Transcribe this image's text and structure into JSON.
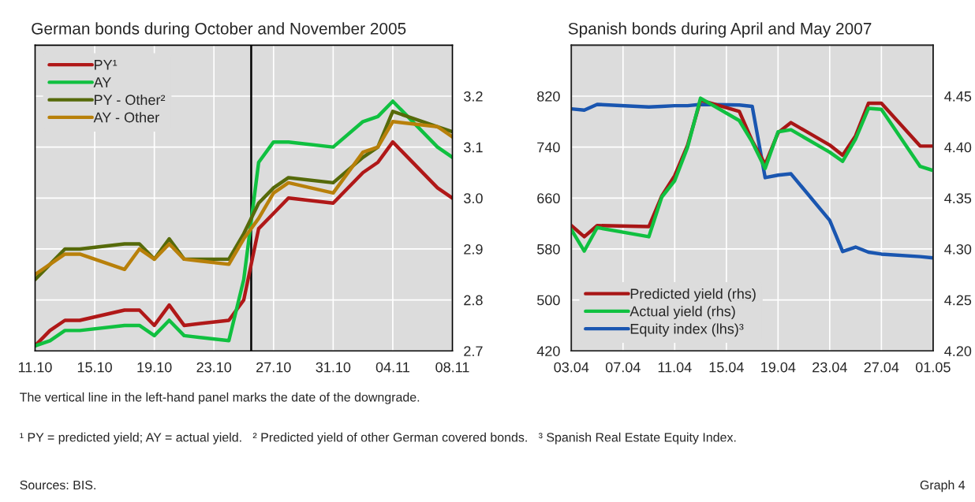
{
  "chart_data": [
    {
      "type": "line",
      "title": "German bonds during October and November 2005",
      "x": [
        "2005-10-11",
        "2005-10-12",
        "2005-10-13",
        "2005-10-14",
        "2005-10-17",
        "2005-10-18",
        "2005-10-19",
        "2005-10-20",
        "2005-10-21",
        "2005-10-24",
        "2005-10-25",
        "2005-10-26",
        "2005-10-27",
        "2005-10-28",
        "2005-10-31",
        "2005-11-02",
        "2005-11-03",
        "2005-11-04",
        "2005-11-07",
        "2005-11-08"
      ],
      "series": [
        {
          "name": "PY¹",
          "color": "#b01818",
          "values": [
            2.71,
            2.74,
            2.76,
            2.76,
            2.78,
            2.78,
            2.75,
            2.79,
            2.75,
            2.76,
            2.8,
            2.94,
            2.97,
            3.0,
            2.99,
            3.05,
            3.07,
            3.11,
            3.02,
            3.0
          ]
        },
        {
          "name": "AY",
          "color": "#10c040",
          "values": [
            2.71,
            2.72,
            2.74,
            2.74,
            2.75,
            2.75,
            2.73,
            2.76,
            2.73,
            2.72,
            2.84,
            3.07,
            3.11,
            3.11,
            3.1,
            3.15,
            3.16,
            3.19,
            3.1,
            3.08
          ]
        },
        {
          "name": "PY - Other²",
          "color": "#566a0a",
          "values": [
            2.84,
            2.87,
            2.9,
            2.9,
            2.91,
            2.91,
            2.88,
            2.92,
            2.88,
            2.88,
            2.93,
            2.99,
            3.02,
            3.04,
            3.03,
            3.08,
            3.1,
            3.17,
            3.14,
            3.13
          ]
        },
        {
          "name": "AY - Other",
          "color": "#b8800a",
          "values": [
            2.85,
            2.87,
            2.89,
            2.89,
            2.86,
            2.9,
            2.88,
            2.91,
            2.88,
            2.87,
            2.92,
            2.96,
            3.01,
            3.03,
            3.01,
            3.09,
            3.1,
            3.15,
            3.14,
            3.12
          ]
        }
      ],
      "xlim": [
        "2005-10-11",
        "2005-11-08"
      ],
      "xticks": [
        {
          "value": "2005-10-11",
          "label": "11.10"
        },
        {
          "value": "2005-10-15",
          "label": "15.10"
        },
        {
          "value": "2005-10-19",
          "label": "19.10"
        },
        {
          "value": "2005-10-23",
          "label": "23.10"
        },
        {
          "value": "2005-10-27",
          "label": "27.10"
        },
        {
          "value": "2005-10-31",
          "label": "31.10"
        },
        {
          "value": "2005-11-04",
          "label": "04.11"
        },
        {
          "value": "2005-11-08",
          "label": "08.11"
        }
      ],
      "ylim": [
        2.7,
        3.3
      ],
      "yticks": [
        2.7,
        2.8,
        2.9,
        {
          "value": 3.0,
          "label": "3.0"
        },
        3.1,
        3.2
      ],
      "grid": true,
      "legend": "top left",
      "ref_lines": [
        {
          "axis": "x",
          "value": "2005-10-25T12:00",
          "color": "#000000"
        }
      ],
      "annotations": [
        "The vertical line in the left-hand panel marks the date of the downgrade.",
        "¹ PY = predicted yield; AY = actual yield.   ² Predicted yield of other German covered bonds.   ³ Spanish Real Estate Equity Index.",
        "Sources: BIS.",
        "Graph 4"
      ]
    },
    {
      "type": "line",
      "title": "Spanish bonds during April and May 2007",
      "x": [
        "2007-04-03",
        "2007-04-04",
        "2007-04-05",
        "2007-04-09",
        "2007-04-10",
        "2007-04-11",
        "2007-04-12",
        "2007-04-13",
        "2007-04-16",
        "2007-04-17",
        "2007-04-18",
        "2007-04-19",
        "2007-04-20",
        "2007-04-23",
        "2007-04-24",
        "2007-04-25",
        "2007-04-26",
        "2007-04-27",
        "2007-04-30",
        "2007-05-01"
      ],
      "series": [
        {
          "name": "Predicted yield (rhs)",
          "color": "#a81616",
          "axis": "y2",
          "values": [
            4.323,
            4.312,
            4.323,
            4.322,
            4.352,
            4.372,
            4.402,
            4.446,
            4.435,
            4.406,
            4.383,
            4.414,
            4.424,
            4.402,
            4.392,
            4.411,
            4.443,
            4.443,
            4.401,
            4.401
          ]
        },
        {
          "name": "Actual yield (rhs)",
          "color": "#10c040",
          "axis": "y2",
          "values": [
            4.319,
            4.298,
            4.321,
            4.312,
            4.351,
            4.367,
            4.4,
            4.448,
            4.426,
            4.405,
            4.379,
            4.415,
            4.417,
            4.395,
            4.386,
            4.408,
            4.438,
            4.437,
            4.381,
            4.377
          ]
        },
        {
          "name": "Equity index (lhs)³",
          "color": "#1a56b0",
          "values": [
            800,
            798,
            807,
            803,
            804,
            805,
            805,
            807,
            806,
            804,
            692,
            696,
            698,
            625,
            576,
            583,
            575,
            572,
            568,
            566
          ]
        }
      ],
      "xlim": [
        "2007-04-03",
        "2007-05-01"
      ],
      "xticks": [
        {
          "value": "2007-04-03",
          "label": "03.04"
        },
        {
          "value": "2007-04-07",
          "label": "07.04"
        },
        {
          "value": "2007-04-11",
          "label": "11.04"
        },
        {
          "value": "2007-04-15",
          "label": "15.04"
        },
        {
          "value": "2007-04-19",
          "label": "19.04"
        },
        {
          "value": "2007-04-23",
          "label": "23.04"
        },
        {
          "value": "2007-04-27",
          "label": "27.04"
        },
        {
          "value": "2007-05-01",
          "label": "01.05"
        }
      ],
      "ylim": [
        420,
        900
      ],
      "yticks": [
        420,
        500,
        580,
        660,
        740,
        820
      ],
      "y2lim": [
        4.2,
        4.5
      ],
      "y2ticks": [
        {
          "value": 4.2,
          "label": "4.20"
        },
        {
          "value": 4.25,
          "label": "4.25"
        },
        {
          "value": 4.3,
          "label": "4.30"
        },
        {
          "value": 4.35,
          "label": "4.35"
        },
        {
          "value": 4.4,
          "label": "4.40"
        },
        {
          "value": 4.45,
          "label": "4.45"
        }
      ],
      "grid": true,
      "legend": "bottom left"
    }
  ]
}
